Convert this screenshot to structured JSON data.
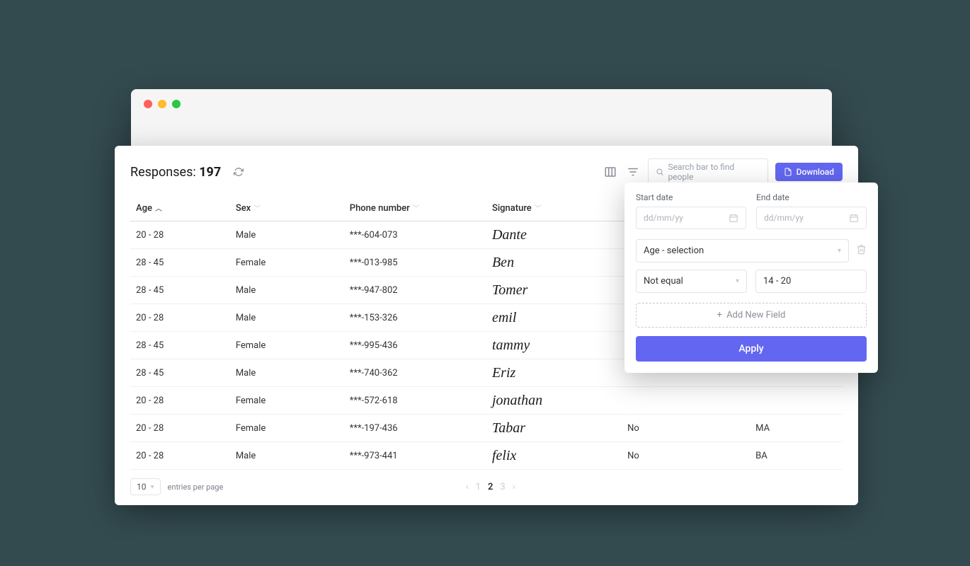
{
  "colors": {
    "background": "#334a4f",
    "panel_bg": "#ffffff",
    "outer_bg": "#f5f5f5",
    "primary": "#6366f1",
    "border": "#e2e4e8",
    "muted": "#9aa1ac",
    "traffic_red": "#ff5f57",
    "traffic_yellow": "#febc2e",
    "traffic_green": "#28c840"
  },
  "header": {
    "title_prefix": "Responses: ",
    "count": "197",
    "search_placeholder": "Search bar to find people",
    "download_label": "Download"
  },
  "table": {
    "columns": [
      {
        "label": "Age",
        "sort": "asc",
        "width": "14%"
      },
      {
        "label": "Sex",
        "sort": "none",
        "width": "16%"
      },
      {
        "label": "Phone number",
        "sort": "none",
        "width": "20%"
      },
      {
        "label": "Signature",
        "sort": "none",
        "width": "19%"
      },
      {
        "label": "",
        "sort": "none",
        "width": "18%"
      },
      {
        "label": "",
        "sort": "none",
        "width": "13%"
      }
    ],
    "rows": [
      {
        "age": "20 - 28",
        "sex": "Male",
        "phone": "***-604-073",
        "signature": "Dante",
        "col5": "",
        "col6": ""
      },
      {
        "age": "28 - 45",
        "sex": "Female",
        "phone": "***-013-985",
        "signature": "Ben",
        "col5": "",
        "col6": ""
      },
      {
        "age": "28 - 45",
        "sex": "Male",
        "phone": "***-947-802",
        "signature": "Tomer",
        "col5": "",
        "col6": ""
      },
      {
        "age": "20 - 28",
        "sex": "Male",
        "phone": "***-153-326",
        "signature": "emil",
        "col5": "",
        "col6": ""
      },
      {
        "age": "28 - 45",
        "sex": "Female",
        "phone": "***-995-436",
        "signature": "tammy",
        "col5": "",
        "col6": ""
      },
      {
        "age": "28 - 45",
        "sex": "Male",
        "phone": "***-740-362",
        "signature": "Eriz",
        "col5": "",
        "col6": ""
      },
      {
        "age": "20 - 28",
        "sex": "Female",
        "phone": "***-572-618",
        "signature": "jonathan",
        "col5": "",
        "col6": ""
      },
      {
        "age": "20 - 28",
        "sex": "Female",
        "phone": "***-197-436",
        "signature": "Tabar",
        "col5": "No",
        "col6": "MA"
      },
      {
        "age": "20 - 28",
        "sex": "Male",
        "phone": "***-973-441",
        "signature": "felix",
        "col5": "No",
        "col6": "BA"
      }
    ]
  },
  "pagination": {
    "entries_value": "10",
    "entries_label": "entries per page",
    "pages": [
      "1",
      "2",
      "3"
    ],
    "active_index": 1
  },
  "filter": {
    "start_label": "Start date",
    "end_label": "End date",
    "date_placeholder": "dd/mm/yy",
    "field_select": "Age - selection",
    "condition": "Not equal",
    "value": "14 - 20",
    "add_field_label": "Add New Field",
    "apply_label": "Apply"
  }
}
